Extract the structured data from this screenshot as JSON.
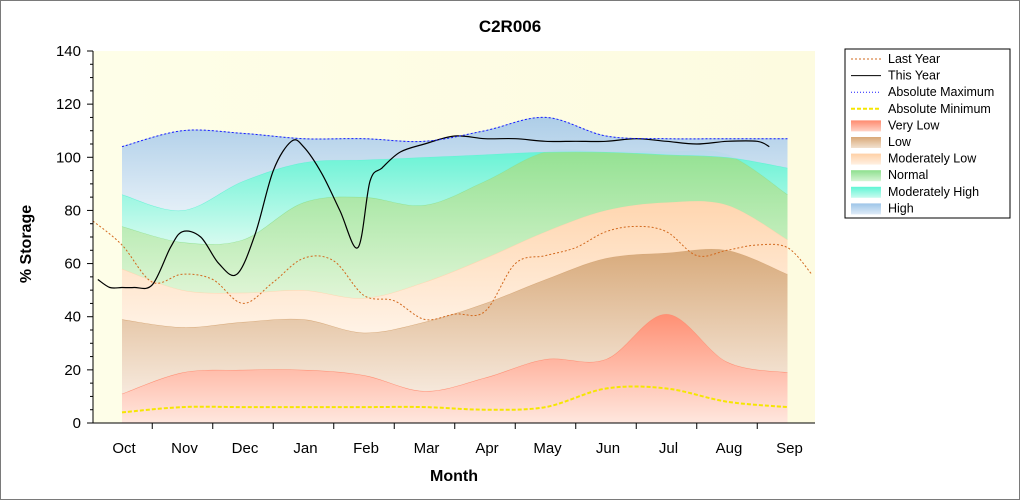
{
  "chart_data": {
    "type": "area",
    "title": "C2R006",
    "xlabel": "Month",
    "ylabel": "% Storage",
    "categories": [
      "Oct",
      "Nov",
      "Dec",
      "Jan",
      "Feb",
      "Mar",
      "Apr",
      "May",
      "Jun",
      "Jul",
      "Aug",
      "Sep"
    ],
    "ylim": [
      0,
      140
    ],
    "yticks": [
      0,
      20,
      40,
      60,
      80,
      100,
      120,
      140
    ],
    "legend_position": "right",
    "band_boundaries": {
      "note": "percent storage at each month; bands fill between consecutive boundaries",
      "x": [
        "Oct",
        "Nov",
        "Dec",
        "Jan",
        "Feb",
        "Mar",
        "Apr",
        "May",
        "Jun",
        "Jul",
        "Aug",
        "Sep"
      ],
      "very_low_top": [
        11,
        19,
        20,
        20,
        18,
        12,
        17,
        24,
        24,
        41,
        23,
        19
      ],
      "low_top": [
        39,
        36,
        38,
        39,
        34,
        38,
        45,
        54,
        62,
        64,
        65,
        56
      ],
      "moderately_low_top": [
        58,
        50,
        49,
        50,
        47,
        53,
        62,
        72,
        80,
        83,
        82,
        69
      ],
      "normal_top": [
        74,
        68,
        69,
        83,
        85,
        82,
        91,
        102,
        102,
        102,
        101,
        86
      ],
      "moderately_high_top": [
        86,
        80,
        91,
        98,
        99,
        100,
        101,
        102,
        102,
        101,
        100,
        96
      ],
      "high_top": [
        104,
        110,
        109,
        107,
        107,
        106,
        110,
        115,
        108,
        107,
        107,
        107
      ]
    },
    "series": [
      {
        "name": "Last Year",
        "color": "#d2691e",
        "dash": "dotted",
        "x": [
          -0.5,
          0,
          0.5,
          1,
          1.5,
          2,
          2.5,
          3,
          3.5,
          4,
          4.5,
          5,
          5.5,
          6,
          6.5,
          7,
          7.5,
          8,
          8.5,
          9,
          9.5,
          10,
          10.5,
          11,
          11.4
        ],
        "values": [
          76,
          67,
          53,
          56,
          54,
          45,
          53,
          62,
          61,
          48,
          46,
          39,
          41,
          42,
          60,
          63,
          66,
          72,
          74,
          72,
          63,
          65,
          67,
          66,
          56
        ]
      },
      {
        "name": "This Year",
        "color": "#000000",
        "dash": "solid",
        "x": [
          -0.4,
          -0.2,
          0,
          0.2,
          0.5,
          0.8,
          1,
          1.3,
          1.6,
          1.9,
          2.2,
          2.5,
          2.8,
          3.0,
          3.3,
          3.6,
          3.9,
          4.1,
          4.3,
          4.6,
          5,
          5.5,
          6,
          6.5,
          7,
          7.5,
          8,
          8.5,
          9,
          9.5,
          10,
          10.5,
          10.7
        ],
        "values": [
          54,
          51,
          51,
          51,
          52,
          66,
          72,
          70,
          60,
          56,
          71,
          95,
          106,
          104,
          94,
          80,
          66,
          91,
          96,
          102,
          105,
          108,
          107,
          107,
          106,
          106,
          106,
          107,
          106,
          105,
          106,
          106,
          104
        ]
      },
      {
        "name": "Absolute Maximum",
        "color": "#1a1aff",
        "dash": "dotted",
        "x": [
          0,
          1,
          2,
          3,
          4,
          5,
          6,
          7,
          8,
          9,
          10,
          11
        ],
        "values": [
          104,
          110,
          109,
          107,
          107,
          106,
          110,
          115,
          108,
          107,
          107,
          107
        ]
      },
      {
        "name": "Absolute Minimum",
        "color": "#f5e600",
        "dash": "dashed",
        "x": [
          0,
          1,
          2,
          3,
          4,
          5,
          6,
          7,
          8,
          9,
          10,
          11
        ],
        "values": [
          4,
          6,
          6,
          6,
          6,
          6,
          5,
          6,
          13,
          13,
          8,
          6
        ]
      }
    ]
  },
  "legend": [
    {
      "label": "Last Year",
      "kind": "line",
      "color": "#d2691e",
      "dash": "2,2"
    },
    {
      "label": "This Year",
      "kind": "line",
      "color": "#000000",
      "dash": ""
    },
    {
      "label": "Absolute Maximum",
      "kind": "line",
      "color": "#1a1aff",
      "dash": "1,2"
    },
    {
      "label": "Absolute Minimum",
      "kind": "line",
      "color": "#f5e600",
      "dash": "4,2"
    },
    {
      "label": "Very Low",
      "kind": "swatch",
      "color": "#ff8a6e",
      "color2": "#ffd3c6"
    },
    {
      "label": "Low",
      "kind": "swatch",
      "color": "#d9a877",
      "color2": "#f2e1cf"
    },
    {
      "label": "Moderately Low",
      "kind": "swatch",
      "color": "#ffd1a6",
      "color2": "#fff0e2"
    },
    {
      "label": "Normal",
      "kind": "swatch",
      "color": "#8ee08e",
      "color2": "#d6f5d6"
    },
    {
      "label": "Moderately High",
      "kind": "swatch",
      "color": "#5ff5d5",
      "color2": "#c8fbef"
    },
    {
      "label": "High",
      "kind": "swatch",
      "color": "#9ec5e8",
      "color2": "#dfecf8"
    }
  ]
}
